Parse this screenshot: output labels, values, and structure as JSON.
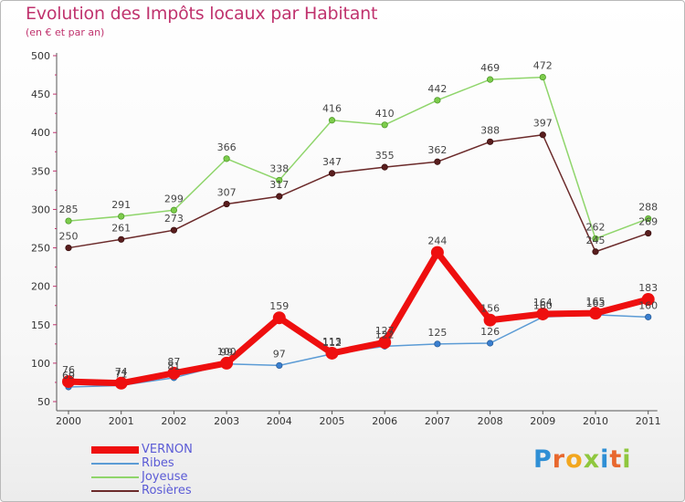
{
  "title": "Evolution des Impôts locaux par Habitant",
  "subtitle": "(en € et par an)",
  "logo": {
    "text": "Proxiti",
    "letters": [
      "P",
      "r",
      "o",
      "x",
      "i",
      "t",
      "i"
    ],
    "colors": [
      "#2f8fd5",
      "#e8682e",
      "#f2a71f",
      "#8fc73e",
      "#2f8fd5",
      "#e8682e",
      "#8fc73e"
    ]
  },
  "colors": {
    "VERNON": "#ee0f0f",
    "Ribes": "#5b9bd5",
    "Joyeuse": "#8fd56b",
    "Rosieres": "#6b2a2a",
    "accent": "#c0336e"
  },
  "chart_data": {
    "type": "line",
    "title": "Evolution des Impôts locaux par Habitant",
    "subtitle": "(en € et par an)",
    "xlabel": "",
    "ylabel": "",
    "ylim": [
      50,
      500
    ],
    "yticks": [
      50,
      100,
      150,
      200,
      250,
      300,
      350,
      400,
      450,
      500
    ],
    "categories": [
      "2000",
      "2001",
      "2002",
      "2003",
      "2004",
      "2005",
      "2006",
      "2007",
      "2008",
      "2009",
      "2010",
      "2011"
    ],
    "series": [
      {
        "name": "VERNON",
        "values": [
          76,
          74,
          87,
          100,
          159,
          113,
          127,
          244,
          156,
          164,
          165,
          183
        ]
      },
      {
        "name": "Ribes",
        "values": [
          69,
          71,
          81,
          99,
          97,
          112,
          122,
          125,
          126,
          160,
          163,
          160
        ]
      },
      {
        "name": "Joyeuse",
        "values": [
          285,
          291,
          299,
          366,
          338,
          416,
          410,
          442,
          469,
          472,
          262,
          288
        ]
      },
      {
        "name": "Rosières",
        "values": [
          250,
          261,
          273,
          307,
          317,
          347,
          355,
          362,
          388,
          397,
          245,
          269
        ]
      }
    ],
    "legend": "bottom-left",
    "grid": false
  }
}
